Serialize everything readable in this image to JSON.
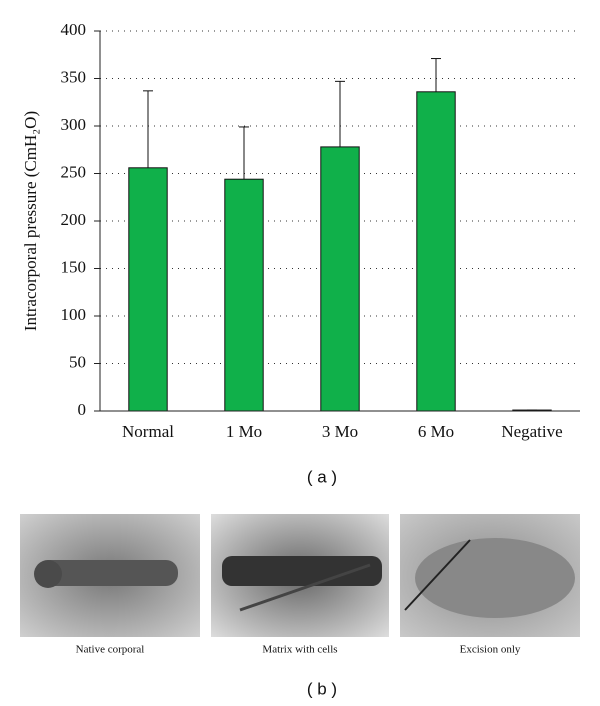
{
  "chart_data": {
    "type": "bar",
    "y_label": "Intracorporal pressure (CmH₂O)",
    "categories": [
      "Normal",
      "1 Mo",
      "3 Mo",
      "6 Mo",
      "Negative"
    ],
    "values": [
      256,
      244,
      278,
      336,
      1
    ],
    "errors": [
      81,
      55,
      69,
      35,
      0
    ],
    "color": "#10b04a",
    "ylim": [
      0,
      400
    ],
    "yticks": [
      0,
      50,
      100,
      150,
      200,
      250,
      300,
      350,
      400
    ],
    "grid": true
  },
  "figure": {
    "panel_a": "( a )",
    "panel_b": "( b )",
    "photos": [
      "Native corporal",
      "Matrix with cells",
      "Excision only"
    ]
  }
}
